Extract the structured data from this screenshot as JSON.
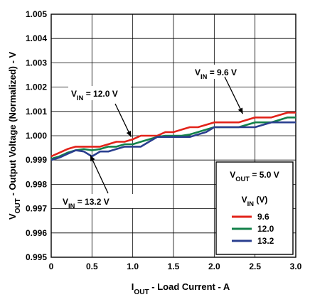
{
  "chart_data": {
    "type": "line",
    "x": [
      0,
      0.1,
      0.2,
      0.3,
      0.4,
      0.5,
      0.6,
      0.7,
      0.8,
      0.9,
      1.0,
      1.1,
      1.2,
      1.3,
      1.4,
      1.5,
      1.6,
      1.7,
      1.8,
      1.9,
      2.0,
      2.1,
      2.2,
      2.3,
      2.4,
      2.5,
      2.6,
      2.7,
      2.8,
      2.9,
      3.0
    ],
    "series": [
      {
        "name": "9.6",
        "color": "#e2231a",
        "values": [
          0.99915,
          0.9993,
          0.99945,
          0.99955,
          0.99955,
          0.99955,
          0.99955,
          0.99965,
          0.99975,
          0.99975,
          0.99985,
          1.0,
          1.0,
          1.0,
          1.00015,
          1.00015,
          1.00025,
          1.00035,
          1.00035,
          1.00045,
          1.00055,
          1.00055,
          1.00055,
          1.00055,
          1.00065,
          1.00075,
          1.00075,
          1.00075,
          1.00085,
          1.00095,
          1.00095
        ]
      },
      {
        "name": "12.0",
        "color": "#13814a",
        "values": [
          0.99905,
          0.99915,
          0.9993,
          0.9994,
          0.99945,
          0.9994,
          0.99945,
          0.99955,
          0.99955,
          0.99965,
          0.99965,
          0.99975,
          0.99985,
          0.99995,
          1.0,
          1.0,
          1.0,
          1.00005,
          1.00015,
          1.00025,
          1.00035,
          1.00035,
          1.00035,
          1.00035,
          1.00045,
          1.00055,
          1.00055,
          1.00055,
          1.00065,
          1.00075,
          1.00075
        ]
      },
      {
        "name": "13.2",
        "color": "#2a3f8f",
        "values": [
          0.999,
          0.9991,
          0.99925,
          0.9994,
          0.99935,
          0.99915,
          0.99935,
          0.99935,
          0.99945,
          0.99955,
          0.99955,
          0.99955,
          0.99975,
          0.99995,
          0.99995,
          0.99995,
          0.99995,
          0.99995,
          1.00005,
          1.00015,
          1.00035,
          1.00035,
          1.00035,
          1.00035,
          1.00035,
          1.00035,
          1.00045,
          1.00055,
          1.00055,
          1.00055,
          1.00055
        ]
      }
    ],
    "xlabel_main": "I",
    "xlabel_sub": "OUT",
    "xlabel_rest": " - Load Current - A",
    "ylabel_main": "V",
    "ylabel_sub": "OUT",
    "ylabel_rest": " - Output Voltage (Normalized) - V",
    "xlim": [
      0,
      3.0
    ],
    "ylim": [
      0.995,
      1.005
    ],
    "xticks": [
      "0",
      "0.5",
      "1.0",
      "1.5",
      "2.0",
      "2.5",
      "3.0"
    ],
    "yticks": [
      "0.995",
      "0.996",
      "0.997",
      "0.998",
      "0.999",
      "1.000",
      "1.001",
      "1.002",
      "1.003",
      "1.004",
      "1.005"
    ],
    "grid": true,
    "legend": {
      "placement": "bottom-right",
      "header_main": "V",
      "header_sub": "OUT",
      "header_rest": " = 5.0 V",
      "subheader_main": "V",
      "subheader_sub": "IN",
      "subheader_rest": " (V)"
    },
    "annotations": [
      {
        "main": "V",
        "sub": "IN",
        "rest": " = 9.6 V",
        "arrow_x": 2.35,
        "arrow_y": 1.0009
      },
      {
        "main": "V",
        "sub": "IN",
        "rest": " = 12.0 V",
        "arrow_x": 0.98,
        "arrow_y": 0.99995
      },
      {
        "main": "V",
        "sub": "IN",
        "rest": " = 13.2 V",
        "arrow_x": 0.48,
        "arrow_y": 0.9992
      }
    ]
  }
}
